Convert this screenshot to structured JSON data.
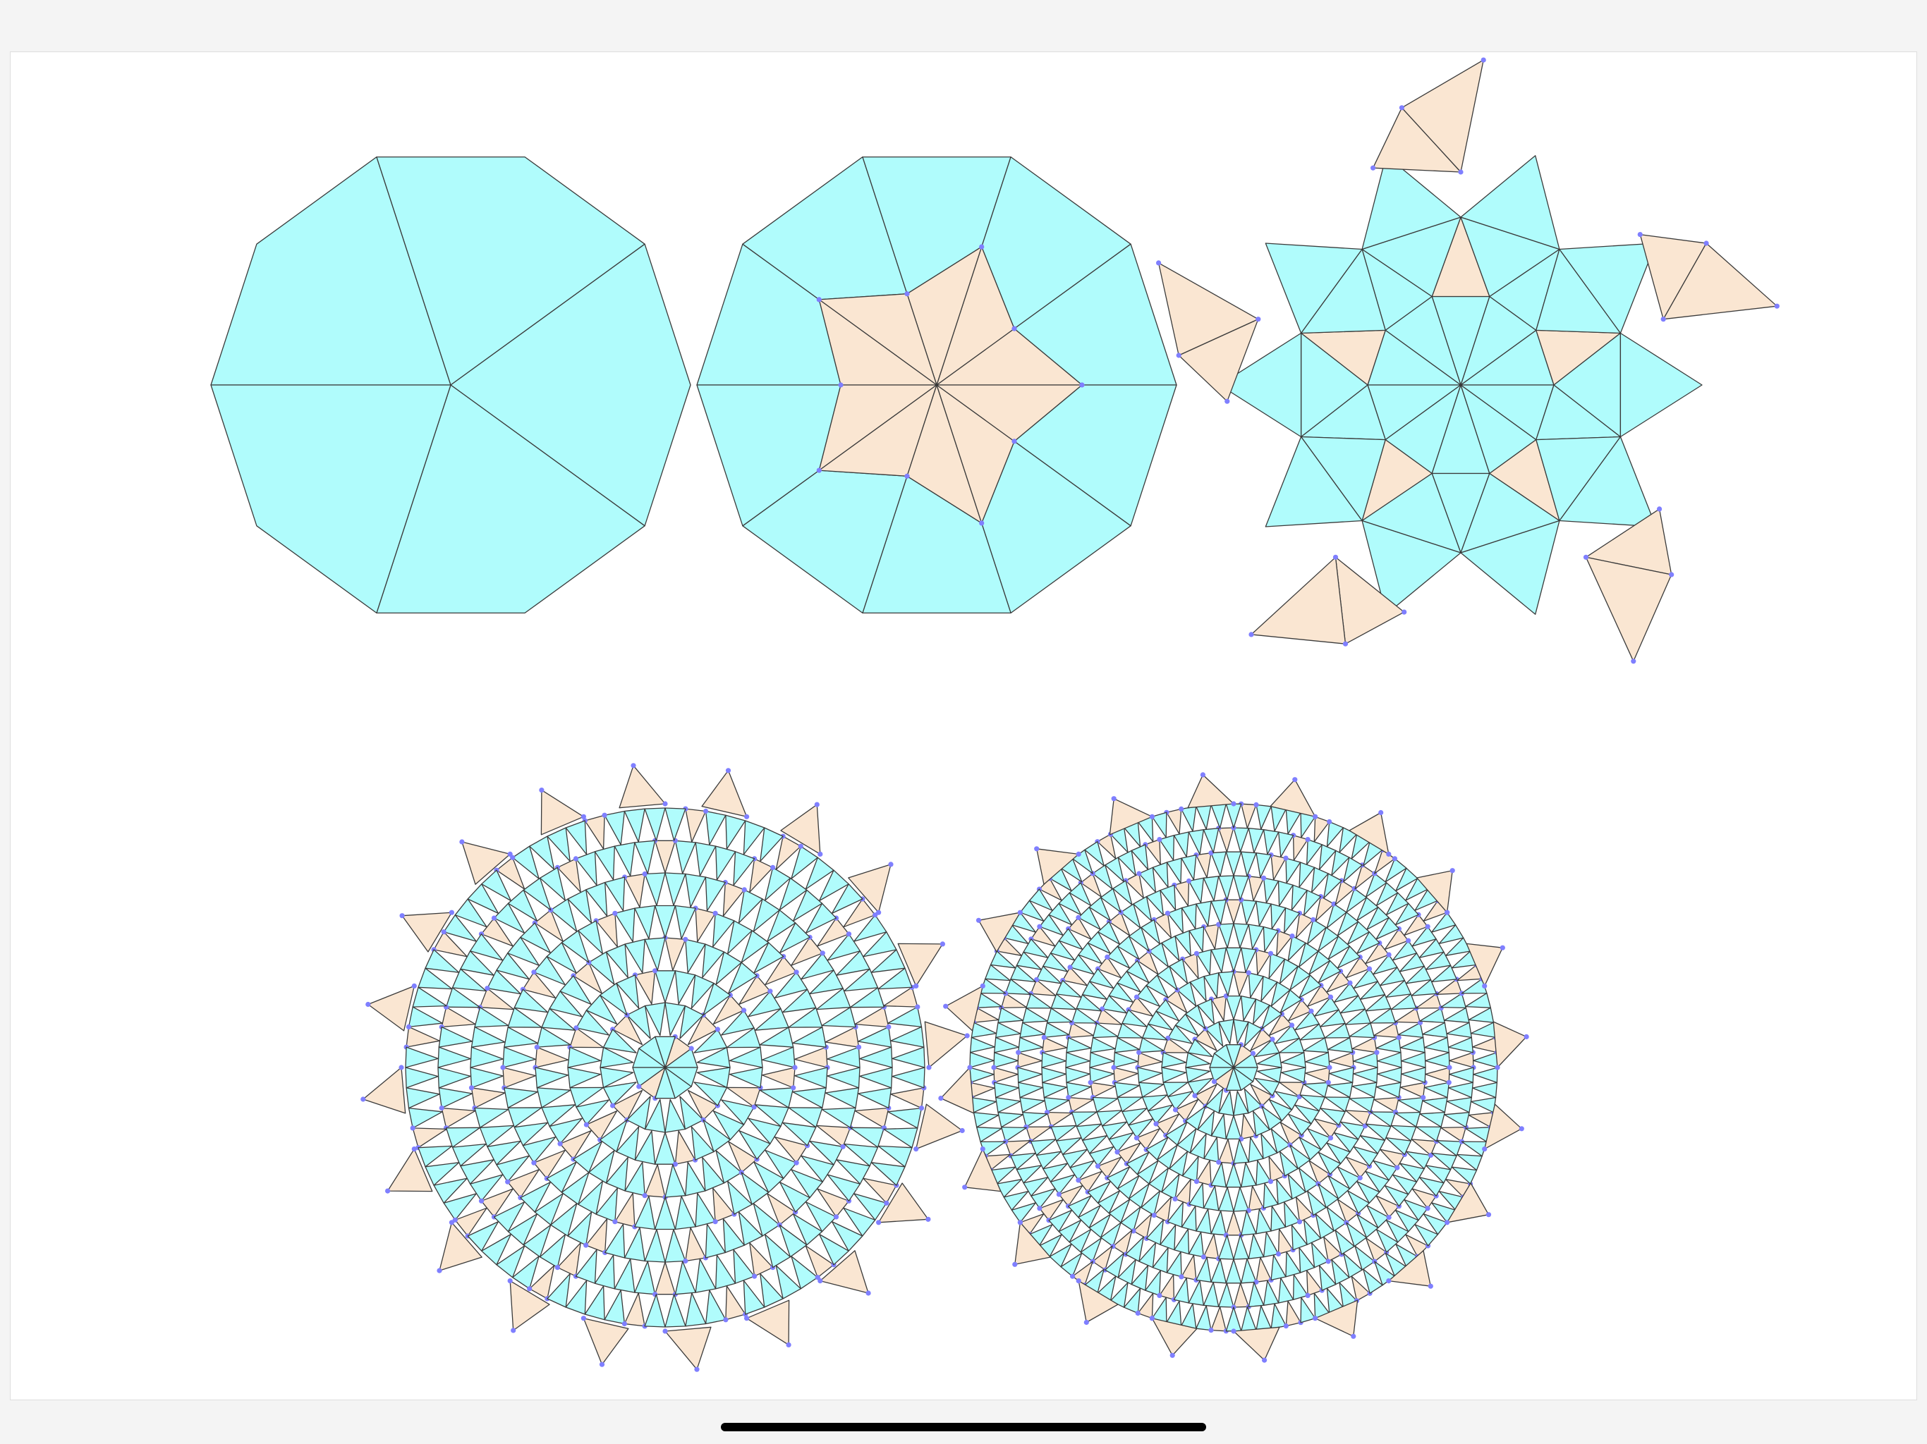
{
  "colors": {
    "background": "#f4f4f4",
    "canvas": "#ffffff",
    "cyan_tile": "#b0fcfc",
    "peach_tile": "#fae6d2",
    "edge": "#3a3a3a",
    "vertex": "#7f7fff",
    "home_indicator": "#000000"
  },
  "figures": [
    {
      "name": "decagon-iteration-0",
      "kind": "decagon",
      "level": 0
    },
    {
      "name": "decagon-iteration-1",
      "kind": "decagon-with-star",
      "level": 1
    },
    {
      "name": "decagon-iteration-2",
      "kind": "pinwheel-ring",
      "level": 2
    },
    {
      "name": "tiling-iteration-3",
      "kind": "tiling-patch",
      "level": 3
    },
    {
      "name": "tiling-iteration-4",
      "kind": "tiling-patch",
      "level": 4
    }
  ]
}
